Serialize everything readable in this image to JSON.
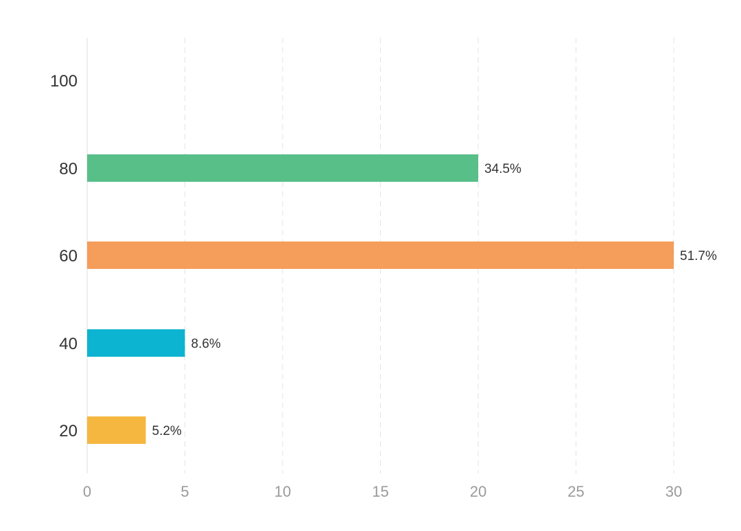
{
  "chart_data": {
    "type": "bar",
    "orientation": "horizontal",
    "categories": [
      "100",
      "80",
      "60",
      "40",
      "20"
    ],
    "values": [
      0,
      20,
      30,
      5,
      3
    ],
    "data_labels": [
      "",
      "34.5%",
      "51.7%",
      "8.6%",
      "5.2%"
    ],
    "colors": [
      "#59bf89",
      "#59bf89",
      "#f59d5a",
      "#0db4d1",
      "#f5b740"
    ],
    "x_ticks": [
      "0",
      "5",
      "10",
      "15",
      "20",
      "25",
      "30"
    ],
    "xlim": [
      0,
      30
    ],
    "title": "",
    "xlabel": "",
    "ylabel": "",
    "grid": "vertical dashed",
    "legend": "none"
  }
}
